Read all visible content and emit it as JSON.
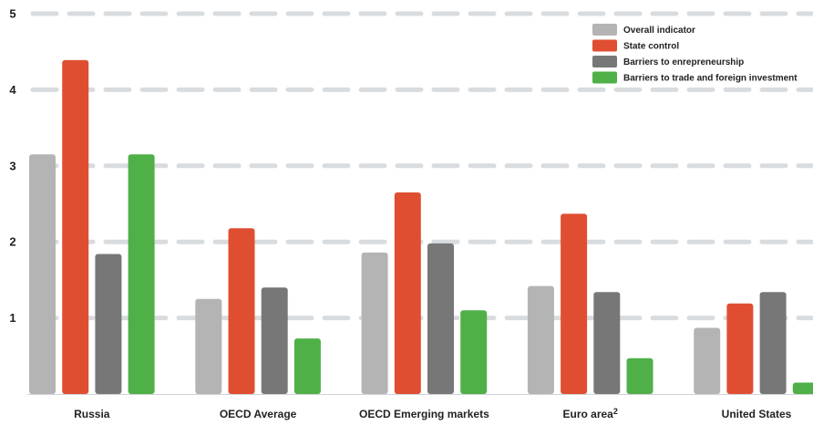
{
  "chart_data": {
    "type": "bar",
    "title": "",
    "xlabel": "",
    "ylabel": "",
    "ylim": [
      0,
      5
    ],
    "yticks": [
      "1",
      "2",
      "3",
      "4",
      "5"
    ],
    "grid": true,
    "legend_position": "top-right",
    "categories": [
      {
        "label": "Russia",
        "superscript": ""
      },
      {
        "label": "OECD Average",
        "superscript": ""
      },
      {
        "label": "OECD Emerging markets",
        "superscript": ""
      },
      {
        "label": "Euro area",
        "superscript": "2"
      },
      {
        "label": "United States",
        "superscript": ""
      }
    ],
    "series": [
      {
        "name": "Overall indicator",
        "color": "#b3b4b3",
        "values": [
          3.15,
          1.25,
          1.86,
          1.42,
          0.87
        ]
      },
      {
        "name": "State control",
        "color": "#e04e31",
        "values": [
          4.39,
          2.18,
          2.65,
          2.37,
          1.19
        ]
      },
      {
        "name": "Barriers to enrepreneurship",
        "color": "#767776",
        "values": [
          1.84,
          1.4,
          1.98,
          1.34,
          1.34
        ]
      },
      {
        "name": "Barriers to trade and foreign investment",
        "color": "#4fb048",
        "values": [
          3.15,
          0.73,
          1.1,
          0.47,
          0.15
        ]
      }
    ]
  }
}
